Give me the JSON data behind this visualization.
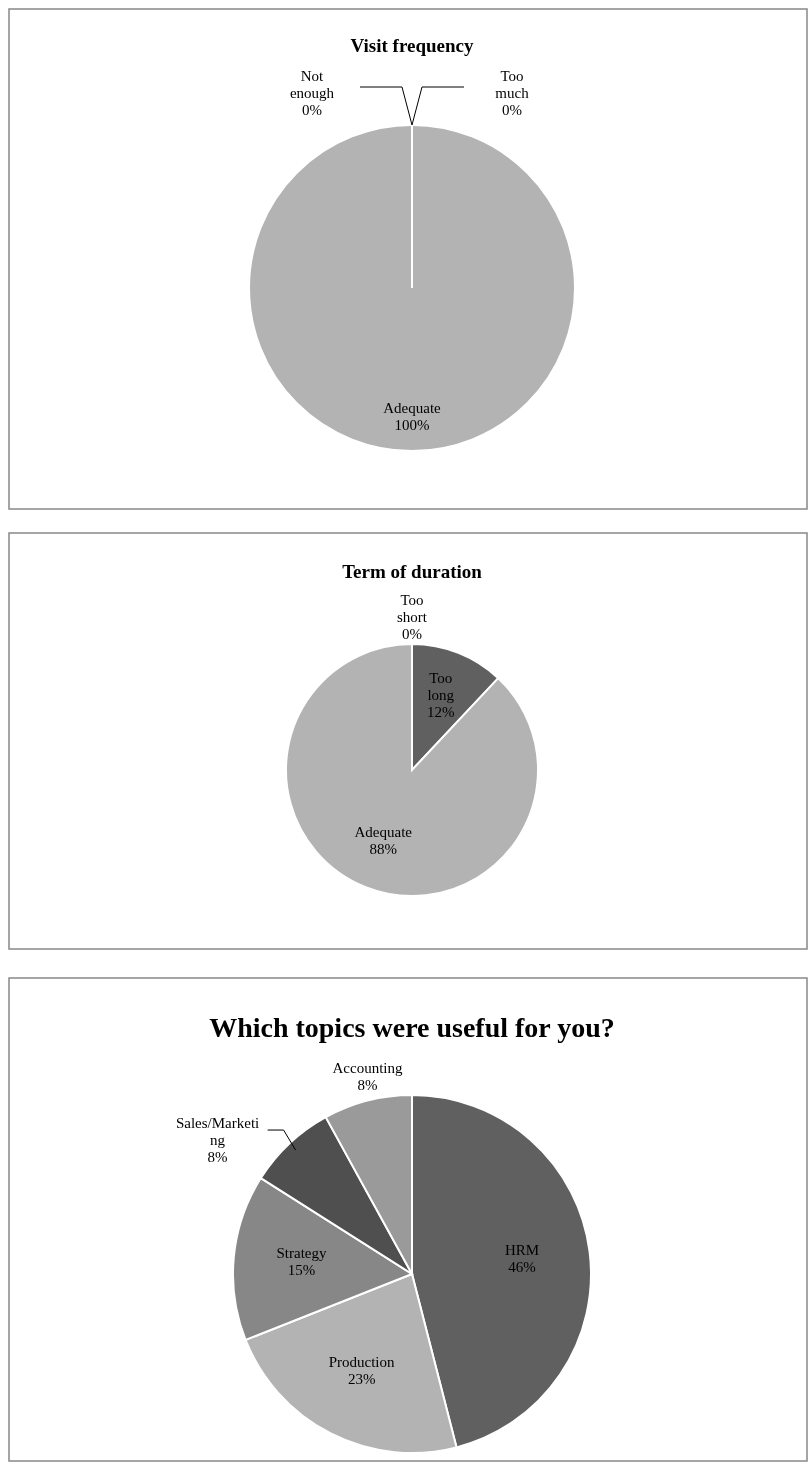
{
  "chart_data": [
    {
      "type": "pie",
      "title": "Visit frequency",
      "categories": [
        "Too much",
        "Adequate",
        "Not enough"
      ],
      "values": [
        0,
        100,
        0
      ],
      "value_labels": [
        "0%",
        "100%",
        "0%"
      ],
      "colors": [
        "#606060",
        "#b3b3b3",
        "#8a8a8a"
      ]
    },
    {
      "type": "pie",
      "title": "Term of duration",
      "categories": [
        "Too long",
        "Adequate",
        "Too short"
      ],
      "values": [
        12,
        88,
        0
      ],
      "value_labels": [
        "12%",
        "88%",
        "0%"
      ],
      "colors": [
        "#606060",
        "#b3b3b3",
        "#8a8a8a"
      ]
    },
    {
      "type": "pie",
      "title": "Which topics were useful for you?",
      "categories": [
        "HRM",
        "Production",
        "Strategy",
        "Sales/Marketing",
        "Accounting"
      ],
      "values": [
        46,
        23,
        15,
        8,
        8
      ],
      "value_labels": [
        "46%",
        "23%",
        "15%",
        "8%",
        "8%"
      ],
      "colors": [
        "#606060",
        "#b3b3b3",
        "#878787",
        "#4f4f4f",
        "#9a9a9a"
      ]
    }
  ]
}
